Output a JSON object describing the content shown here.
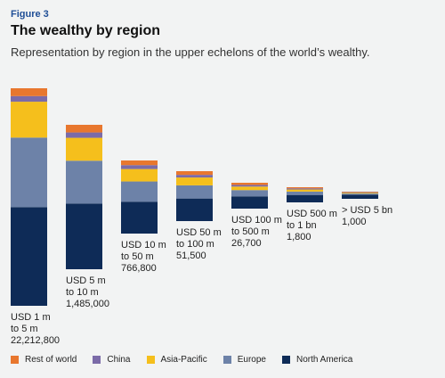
{
  "figure_label": "Figure 3",
  "title": "The wealthy by region",
  "subtitle": "Representation by region in the upper echelons of the world’s wealthy.",
  "colors": {
    "rest_of_world": "#e8772e",
    "china": "#7b6ba8",
    "asia_pacific": "#f5bf1c",
    "europe": "#6d82a8",
    "north_america": "#0e2b57"
  },
  "legend": [
    {
      "name": "Rest of world",
      "color": "#e8772e"
    },
    {
      "name": "China",
      "color": "#7b6ba8"
    },
    {
      "name": "Asia-Pacific",
      "color": "#f5bf1c"
    },
    {
      "name": "Europe",
      "color": "#6d82a8"
    },
    {
      "name": "North America",
      "color": "#0e2b57"
    }
  ],
  "chart_data": {
    "type": "bar",
    "stacked": true,
    "categories": [
      [
        "USD 1 m",
        "to 5 m",
        "22,212,800"
      ],
      [
        "USD 5 m",
        "to 10 m",
        "1,485,000"
      ],
      [
        "USD 10 m",
        "to 50 m",
        "766,800"
      ],
      [
        "USD 50 m",
        "to 100 m",
        "51,500"
      ],
      [
        "USD 100 m",
        "to 500 m",
        "26,700"
      ],
      [
        "USD 500 m",
        "to 1 bn",
        "1,800"
      ],
      [
        "> USD 5 bn",
        "1,000"
      ]
    ],
    "series": [
      {
        "name": "North America",
        "values": [
          44.0,
          43.0,
          41.0,
          43.0,
          45.0,
          46.0,
          52.0
        ]
      },
      {
        "name": "Europe",
        "values": [
          31.0,
          28.0,
          26.0,
          25.0,
          23.0,
          21.0,
          16.0
        ]
      },
      {
        "name": "Asia-Pacific",
        "values": [
          16.0,
          15.0,
          16.0,
          15.0,
          13.0,
          13.0,
          11.0
        ]
      },
      {
        "name": "China",
        "values": [
          2.5,
          3.5,
          5.0,
          5.0,
          6.0,
          7.0,
          8.0
        ]
      },
      {
        "name": "Rest of world",
        "values": [
          3.5,
          5.0,
          6.0,
          7.0,
          8.0,
          7.0,
          6.0
        ]
      }
    ]
  }
}
